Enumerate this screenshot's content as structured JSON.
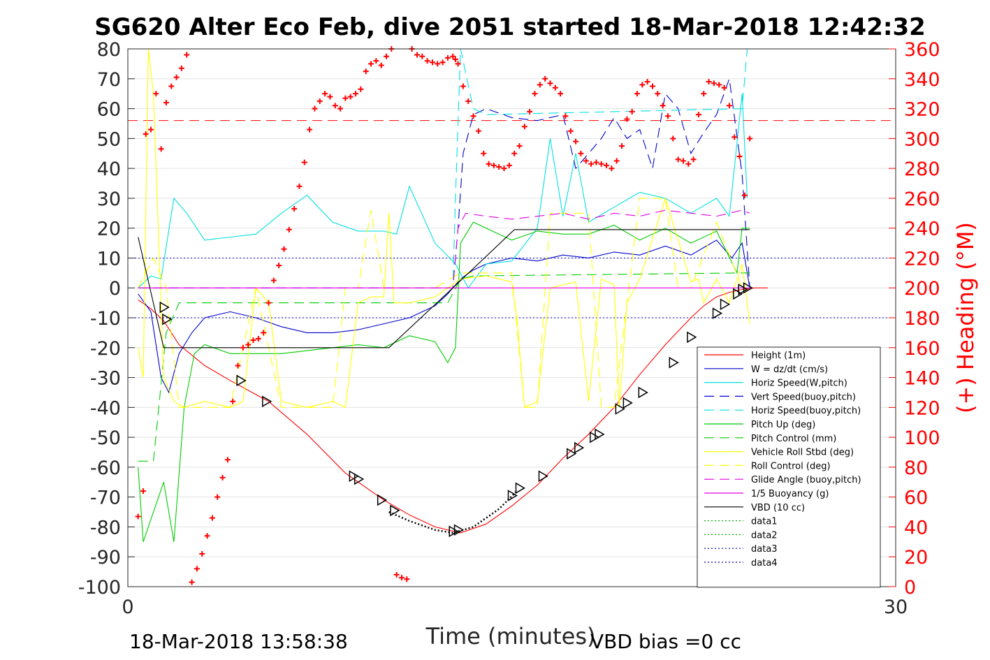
{
  "title": "SG620 Alter Eco Feb, dive 2051 started 18-Mar-2018 12:42:32",
  "footer_left": "18-Mar-2018 13:58:38",
  "footer_right": "VBD bias =0 cc",
  "chart_data": {
    "type": "line",
    "xlabel": "Time (minutes)",
    "ylabel": "",
    "ylabel_right": "(+) Heading (°M)",
    "xlim": [
      0,
      30
    ],
    "ylim": [
      -100,
      80
    ],
    "ylim_right": [
      0,
      360
    ],
    "xticks": [
      "0",
      "30"
    ],
    "yticks": [
      "80",
      "70",
      "60",
      "50",
      "40",
      "30",
      "20",
      "10",
      "0",
      "-10",
      "-20",
      "-30",
      "-40",
      "-50",
      "-60",
      "-70",
      "-80",
      "-90",
      "-100"
    ],
    "yticks_right": [
      "360",
      "340",
      "320",
      "300",
      "280",
      "260",
      "240",
      "220",
      "200",
      "180",
      "160",
      "140",
      "120",
      "100",
      "80",
      "60",
      "40",
      "20",
      "0"
    ],
    "grid": true,
    "legend_position": "bottom-right",
    "colors": {
      "height": "#ff0000",
      "w": "#0000cc",
      "horiz_speed": "#00e0e0",
      "vert_speed_buoy": "#0000cc",
      "pitch": "#00cc00",
      "roll": "#ffff00",
      "glide": "#e000e0",
      "vbd": "#000000",
      "heading": "#ff0000"
    },
    "reference_lines": [
      {
        "axis": "right",
        "y": 312,
        "style": "dashed",
        "color": "#ff0000"
      },
      {
        "axis": "left",
        "y": 10,
        "style": "dotted",
        "color": "#0000aa"
      },
      {
        "axis": "left",
        "y": -10,
        "style": "dotted",
        "color": "#0000aa"
      }
    ],
    "series": [
      {
        "name": "Height (1m)",
        "style": "solid",
        "color": "#ff0000",
        "x": [
          0.4,
          0.9,
          1.4,
          2.0,
          3.0,
          4.0,
          5.5,
          7.0,
          8.5,
          10.0,
          11.0,
          12.0,
          13.0,
          14.0,
          15.0,
          16.0,
          17.0,
          18.0,
          19.0,
          20.0,
          21.0,
          22.0,
          22.5,
          23.0,
          23.5,
          24.0,
          24.5,
          25.0
        ],
        "y": [
          -4,
          -7,
          -11,
          -19,
          -26,
          -31,
          -38,
          -49,
          -62,
          -71,
          -76,
          -80,
          -82,
          -79,
          -73,
          -66,
          -57,
          -49,
          -40,
          -29,
          -19,
          -10,
          -6,
          -3,
          -1.5,
          -0.5,
          0,
          0
        ]
      },
      {
        "name": "W = dz/dt (cm/s)",
        "style": "solid",
        "color": "#0000cc",
        "x": [
          0.4,
          0.9,
          1.3,
          1.6,
          2.0,
          2.5,
          3.0,
          4.0,
          5.0,
          6.0,
          7.0,
          8.0,
          9.0,
          10.0,
          11.0,
          12.0,
          12.5,
          13.0,
          13.5,
          14.0,
          15.0,
          16.0,
          17.0,
          18.0,
          19.0,
          20.0,
          21.0,
          22.0,
          23.0,
          23.6,
          24.0,
          24.3
        ],
        "y": [
          -2,
          -8,
          -30,
          -35,
          -22,
          -15,
          -10,
          -8,
          -10,
          -13,
          -15,
          -15,
          -14,
          -12,
          -10,
          -6,
          -2,
          3,
          6,
          8,
          10,
          9,
          11,
          10,
          12,
          11,
          14,
          11,
          16,
          10,
          15,
          0
        ]
      },
      {
        "name": "Horiz Speed(W,pitch)",
        "style": "solid",
        "color": "#00e0e0",
        "x": [
          0.4,
          0.9,
          1.3,
          1.8,
          2.3,
          3.0,
          4.0,
          5.0,
          6.0,
          7.0,
          8.0,
          9.0,
          10.0,
          10.5,
          11.0,
          12.0,
          12.8,
          13.3,
          14.0,
          15.0,
          16.0,
          16.5,
          17.0,
          17.5,
          18.0,
          19.0,
          20.0,
          21.0,
          22.0,
          23.0,
          23.5,
          24.0,
          24.2
        ],
        "y": [
          0,
          4,
          3,
          30,
          25,
          16,
          17,
          18,
          25,
          31,
          22,
          19,
          19,
          18,
          34,
          15,
          8,
          0,
          8,
          9,
          20,
          50,
          24,
          45,
          22,
          27,
          32,
          30,
          25,
          30,
          24,
          65,
          30
        ]
      },
      {
        "name": "Vert Speed(buoy,pitch)",
        "style": "dashed",
        "color": "#0000cc",
        "x": [
          0.4,
          12.7,
          12.9,
          13.1,
          13.5,
          14.0,
          15.0,
          16.0,
          17.0,
          17.5,
          18.0,
          18.5,
          19.0,
          19.5,
          20.0,
          20.5,
          21.0,
          21.5,
          22.0,
          22.5,
          23.0,
          23.5,
          24.0,
          24.3
        ],
        "y": [
          0,
          0,
          20,
          45,
          58,
          60,
          57,
          56,
          58,
          40,
          45,
          50,
          57,
          50,
          53,
          40,
          65,
          60,
          45,
          52,
          58,
          70,
          38,
          0
        ]
      },
      {
        "name": "Horiz Speed(buoy,pitch)",
        "style": "dashed",
        "color": "#00e0e0",
        "x": [
          0.4,
          12.7,
          12.8,
          13.0,
          13.5,
          14.0,
          24.0,
          24.2
        ],
        "y": [
          0,
          0,
          30,
          80,
          60,
          58,
          60,
          80
        ]
      },
      {
        "name": "Pitch Up (deg)",
        "style": "solid",
        "color": "#00cc00",
        "x": [
          0.4,
          0.6,
          1.0,
          1.4,
          1.8,
          2.2,
          2.6,
          3.0,
          4.0,
          5.0,
          6.0,
          7.0,
          8.0,
          9.0,
          10.0,
          11.0,
          12.0,
          12.5,
          12.8,
          13.0,
          13.5,
          14.0,
          15.0,
          16.0,
          17.0,
          18.0,
          19.0,
          20.0,
          21.0,
          22.0,
          23.0,
          23.8,
          24.0,
          24.3
        ],
        "y": [
          -60,
          -85,
          -75,
          -65,
          -85,
          -40,
          -22,
          -19,
          -22,
          -22,
          -22,
          -21,
          -20,
          -19,
          -20,
          -16,
          -18,
          -25,
          -20,
          15,
          22,
          20,
          16,
          19,
          18,
          18,
          21,
          16,
          20,
          15,
          19,
          5,
          20,
          20
        ]
      },
      {
        "name": "Pitch Control (mm)",
        "style": "dashed",
        "color": "#00cc00",
        "x": [
          0.4,
          1.0,
          1.5,
          2.0,
          2.5,
          12.5,
          13.0,
          13.5,
          24.0,
          24.3
        ],
        "y": [
          -58,
          -58,
          -15,
          -5,
          -5,
          -5,
          3,
          4,
          5,
          5
        ]
      },
      {
        "name": "Vehicle Roll Stbd (deg)",
        "style": "solid",
        "color": "#ffff00",
        "x": [
          0.4,
          0.6,
          0.8,
          1.0,
          1.4,
          1.8,
          2.2,
          3.0,
          4.0,
          4.5,
          5.0,
          5.5,
          6.0,
          7.0,
          8.0,
          8.5,
          9.0,
          9.5,
          10.0,
          10.2,
          10.4,
          11.0,
          12.0,
          12.5,
          13.0,
          14.0,
          15.0,
          15.2,
          15.5,
          16.0,
          16.5,
          17.0,
          17.5,
          18.0,
          18.5,
          19.0,
          19.2,
          19.5,
          20.0,
          21.0,
          22.0,
          22.3,
          22.5,
          23.0,
          23.5,
          24.0,
          24.3
        ],
        "y": [
          -20,
          -30,
          80,
          65,
          -30,
          -38,
          -40,
          -38,
          -40,
          -38,
          0,
          -5,
          -38,
          -40,
          -38,
          -40,
          -5,
          -3,
          -3,
          25,
          -5,
          -5,
          -3,
          0,
          3,
          4,
          2,
          -10,
          -40,
          -38,
          0,
          1,
          2,
          -38,
          3,
          1,
          -40,
          -5,
          3,
          30,
          2,
          3,
          -5,
          3,
          -5,
          8,
          -12
        ]
      },
      {
        "name": "Roll Control (deg)",
        "style": "dashed",
        "color": "#ffff00",
        "x": [
          0.4,
          1.0,
          1.5,
          2.0,
          4.0,
          5.0,
          6.0,
          8.0,
          8.5,
          9.0,
          9.5,
          10.0,
          11.0,
          12.0,
          13.0,
          15.0,
          15.5,
          16.0,
          16.5,
          18.0,
          18.5,
          19.0,
          20.0,
          21.0,
          21.5,
          22.0,
          23.0,
          24.0
        ],
        "y": [
          0,
          10,
          0,
          -40,
          -40,
          0,
          -40,
          -40,
          0,
          0,
          26,
          0,
          0,
          0,
          5,
          5,
          -40,
          -40,
          25,
          25,
          -40,
          -40,
          30,
          30,
          0,
          0,
          22,
          0
        ]
      },
      {
        "name": "Glide Angle (buoy,pitch)",
        "style": "dashed",
        "color": "#e000e0",
        "x": [
          0.4,
          12.7,
          12.9,
          13.2,
          14.0,
          15.0,
          16.0,
          17.0,
          18.0,
          19.0,
          20.0,
          21.0,
          22.0,
          23.0,
          24.0,
          24.3
        ],
        "y": [
          0,
          0,
          20,
          25,
          24,
          23,
          24,
          25,
          23,
          25,
          24,
          26,
          25,
          24,
          26,
          25
        ]
      },
      {
        "name": "1/5 Buoyancy (g)",
        "style": "solid",
        "color": "#e000e0",
        "x": [
          0.4,
          24.3
        ],
        "y": [
          0,
          0
        ]
      },
      {
        "name": "VBD (10 cc)",
        "style": "solid",
        "color": "#000000",
        "x": [
          0.4,
          1.4,
          1.4,
          10.2,
          12.7,
          15.1,
          24.3
        ],
        "y": [
          17,
          -20,
          -20,
          -20,
          0,
          19.5,
          19.5
        ]
      },
      {
        "name": "data1",
        "style": "dotted",
        "color": "#00aa00",
        "x": [],
        "y": []
      },
      {
        "name": "data2",
        "style": "dotted",
        "color": "#00aa00",
        "x": [],
        "y": []
      },
      {
        "name": "data3",
        "style": "dotted",
        "color": "#0000aa",
        "x": [],
        "y": []
      },
      {
        "name": "data4",
        "style": "dotted",
        "color": "#0000aa",
        "x": [],
        "y": []
      }
    ],
    "depth_markers": {
      "x": [
        1.4,
        1.5,
        4.4,
        5.4,
        8.8,
        9.0,
        9.9,
        10.4,
        12.7,
        12.9,
        15.0,
        15.3,
        16.2,
        17.3,
        17.6,
        18.2,
        18.4,
        19.2,
        19.5,
        20.1,
        21.3,
        22.0,
        23.0,
        23.3,
        23.8,
        24.0,
        24.2
      ],
      "y": [
        -6.5,
        -10.5,
        -31,
        -38,
        -63,
        -64,
        -71,
        -74.5,
        -81.5,
        -81,
        -69.5,
        -67,
        -63,
        -55.5,
        -53.5,
        -50,
        -49,
        -40.5,
        -38.5,
        -35,
        -25,
        -16.5,
        -8.5,
        -5.5,
        -2,
        -0.5,
        0
      ]
    },
    "depth_dotted": {
      "x": [
        10.2,
        11.0,
        12.0,
        12.7,
        13.5,
        14.5,
        15.2
      ],
      "y": [
        -75,
        -78,
        -81,
        -82,
        -80,
        -74,
        -68
      ]
    },
    "heading": {
      "x": [
        0.4,
        0.6,
        0.7,
        0.9,
        1.1,
        1.3,
        1.5,
        1.7,
        1.9,
        2.1,
        2.3,
        2.5,
        2.7,
        2.9,
        3.1,
        3.3,
        3.5,
        3.7,
        3.9,
        4.1,
        4.3,
        4.5,
        4.7,
        4.9,
        5.1,
        5.3,
        5.5,
        5.7,
        5.9,
        6.1,
        6.3,
        6.5,
        6.7,
        6.9,
        7.1,
        7.3,
        7.5,
        7.7,
        7.9,
        8.1,
        8.3,
        8.5,
        8.7,
        8.9,
        9.1,
        9.3,
        9.5,
        9.7,
        9.9,
        10.1,
        10.3,
        10.5,
        10.7,
        10.9,
        11.1,
        11.3,
        11.5,
        11.7,
        11.9,
        12.1,
        12.3,
        12.5,
        12.7,
        12.8,
        12.9,
        13.1,
        13.3,
        13.5,
        13.7,
        13.9,
        14.1,
        14.3,
        14.5,
        14.7,
        14.9,
        15.1,
        15.3,
        15.5,
        15.7,
        15.9,
        16.1,
        16.3,
        16.5,
        16.7,
        16.9,
        17.1,
        17.3,
        17.5,
        17.7,
        17.9,
        18.1,
        18.3,
        18.5,
        18.7,
        18.9,
        19.1,
        19.3,
        19.5,
        19.7,
        19.9,
        20.1,
        20.3,
        20.5,
        20.7,
        20.9,
        21.1,
        21.3,
        21.5,
        21.7,
        21.9,
        22.1,
        22.3,
        22.5,
        22.7,
        22.9,
        23.1,
        23.3,
        23.5,
        23.7,
        23.9,
        24.1,
        24.3
      ],
      "y": [
        47,
        64,
        303,
        306,
        330,
        293,
        324,
        335,
        341,
        347,
        356,
        3,
        12,
        22,
        34,
        46,
        60,
        73,
        85,
        124,
        148,
        160,
        162,
        165,
        166,
        170,
        190,
        205,
        215,
        226,
        239,
        253,
        268,
        284,
        306,
        320,
        325,
        330,
        328,
        322,
        320,
        327,
        328,
        330,
        333,
        345,
        350,
        352,
        349,
        355,
        360,
        8,
        6,
        5,
        360,
        356,
        355,
        352,
        351,
        350,
        351,
        354,
        355,
        353,
        350,
        335,
        325,
        315,
        305,
        290,
        283,
        282,
        281,
        280,
        282,
        290,
        295,
        308,
        318,
        330,
        336,
        340,
        337,
        334,
        330,
        315,
        305,
        298,
        290,
        285,
        283,
        284,
        283,
        282,
        280,
        285,
        295,
        313,
        318,
        330,
        336,
        338,
        335,
        330,
        322,
        315,
        300,
        286,
        285,
        283,
        286,
        316,
        330,
        338,
        337,
        336,
        334,
        322,
        301,
        288,
        262,
        300
      ]
    }
  }
}
